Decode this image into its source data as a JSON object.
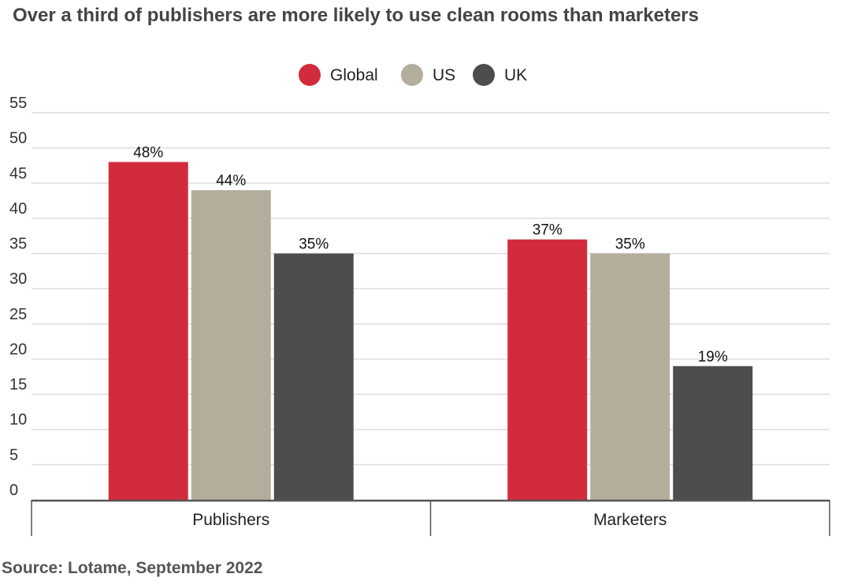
{
  "title": "Over a third of publishers are more likely to use clean rooms than marketers",
  "source": "Source: Lotame, September 2022",
  "chart_data": {
    "type": "bar",
    "categories": [
      "Publishers",
      "Marketers"
    ],
    "series": [
      {
        "name": "Global",
        "color": "#d22c3c",
        "values": [
          48,
          37
        ]
      },
      {
        "name": "US",
        "color": "#b3ae9b",
        "values": [
          44,
          35
        ]
      },
      {
        "name": "UK",
        "color": "#4d4d4f",
        "values": [
          35,
          19
        ]
      }
    ],
    "value_labels": [
      [
        "48%",
        "37%"
      ],
      [
        "44%",
        "35%"
      ],
      [
        "35%",
        "19%"
      ]
    ],
    "ylim": [
      0,
      55
    ],
    "yticks": [
      0,
      5,
      10,
      15,
      20,
      25,
      30,
      35,
      40,
      45,
      50,
      55
    ],
    "legend_position": "top-center",
    "grid": true,
    "xlabel": "",
    "ylabel": ""
  }
}
